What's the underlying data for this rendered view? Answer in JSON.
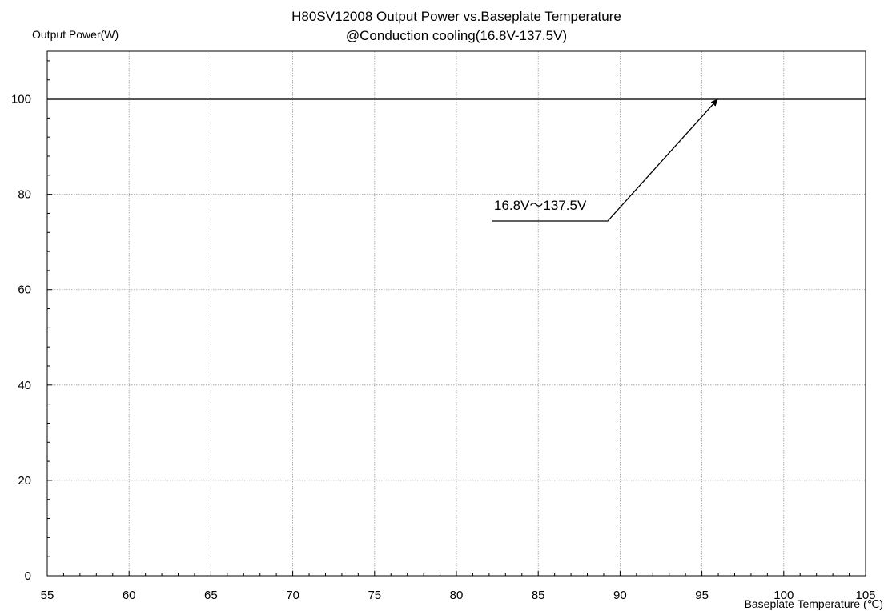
{
  "chart_data": {
    "type": "line",
    "title": "H80SV12008  Output Power vs.Baseplate Temperature",
    "subtitle": "@Conduction cooling(16.8V-137.5V)",
    "xlabel": "Baseplate Temperature (℃)",
    "ylabel": "Output Power(W)",
    "xlim": [
      55,
      105
    ],
    "ylim": [
      0,
      110
    ],
    "x_ticks": [
      55,
      60,
      65,
      70,
      75,
      80,
      85,
      90,
      95,
      100,
      105
    ],
    "y_ticks": [
      0,
      20,
      40,
      60,
      80,
      100
    ],
    "grid": true,
    "series": [
      {
        "name": "16.8V～137.5V",
        "x": [
          55,
          105
        ],
        "y": [
          100,
          100
        ],
        "color": "#555555"
      }
    ],
    "annotations": [
      {
        "text": "16.8V～137.5V",
        "points_to": {
          "x": 96.3,
          "y": 100
        }
      }
    ]
  }
}
